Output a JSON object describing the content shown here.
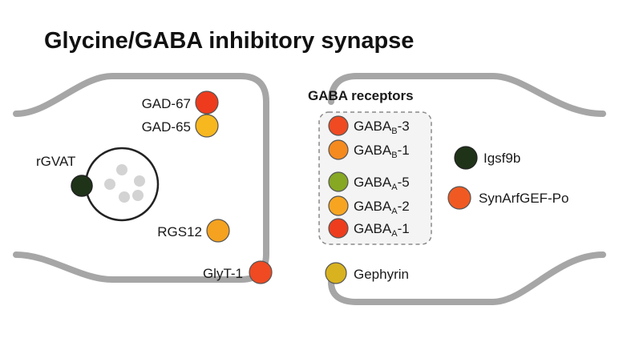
{
  "title": "Glycine/GABA inhibitory synapse",
  "presynaptic": {
    "proteins": [
      {
        "label": "GAD-67",
        "color": "#ee3b1d"
      },
      {
        "label": "GAD-65",
        "color": "#f7b71f"
      },
      {
        "label": "RGS12",
        "color": "#f4a21f"
      },
      {
        "label": "GlyT-1",
        "color": "#ef4a22"
      }
    ],
    "vesicle_transporter": {
      "label": "rGVAT",
      "color": "#1f3319"
    }
  },
  "postsynaptic": {
    "receptor_group_label": "GABA receptors",
    "receptors": [
      {
        "base": "GABA",
        "sub": "B",
        "suffix": "-3",
        "color": "#ef4a22"
      },
      {
        "base": "GABA",
        "sub": "B",
        "suffix": "-1",
        "color": "#f58a1f"
      },
      {
        "base": "GABA",
        "sub": "A",
        "suffix": "-5",
        "color": "#86a823"
      },
      {
        "base": "GABA",
        "sub": "A",
        "suffix": "-2",
        "color": "#f7a521"
      },
      {
        "base": "GABA",
        "sub": "A",
        "suffix": "-1",
        "color": "#ee3d1e"
      }
    ],
    "scaffold": {
      "label": "Gephyrin",
      "color": "#d8b21f"
    }
  },
  "legend": [
    {
      "label": "Igsf9b",
      "color": "#1f3319"
    },
    {
      "label": "SynArfGEF-Po",
      "color": "#f05a22"
    }
  ],
  "colors": {
    "membrane": "#a6a6a6",
    "vesicle_dots": "#d3d3d3",
    "box_border": "#8a8a8a"
  }
}
